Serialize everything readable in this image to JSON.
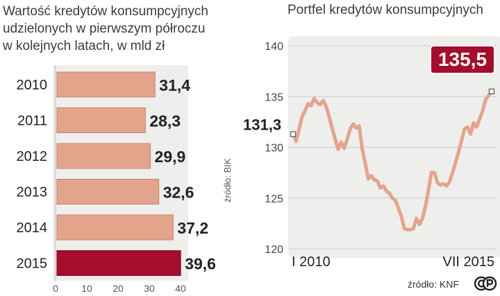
{
  "chart_data": [
    {
      "type": "bar",
      "orientation": "horizontal",
      "title_lines": [
        "Wartość kredytów konsumpcyjnych",
        "udzielonych w pierwszym półroczu",
        "w kolejnych latach, w mld zł"
      ],
      "categories": [
        "2010",
        "2011",
        "2012",
        "2013",
        "2014",
        "2015"
      ],
      "values": [
        31.4,
        28.3,
        29.9,
        32.6,
        37.2,
        39.6
      ],
      "value_labels": [
        "31,4",
        "28,3",
        "29,9",
        "32,6",
        "37,2",
        "39,6"
      ],
      "xlim": [
        0,
        40
      ],
      "xticks": [
        "0",
        "10",
        "20",
        "30",
        "40"
      ],
      "source": "źródło: BIK",
      "colors": {
        "bar": "#e3a48c",
        "highlight": "#a50d2c",
        "panel": "#eeeeec"
      }
    },
    {
      "type": "line",
      "title": "Portfel kredytów konsumpcyjnych",
      "ylim": [
        120,
        140
      ],
      "yticks": [
        "120",
        "125",
        "130",
        "135",
        "140"
      ],
      "xlabels": [
        "I 2010",
        "VII 2015"
      ],
      "x": [
        "2010-01",
        "2010-02",
        "2010-03",
        "2010-04",
        "2010-05",
        "2010-06",
        "2010-07",
        "2010-08",
        "2010-09",
        "2010-10",
        "2010-11",
        "2010-12",
        "2011-01",
        "2011-02",
        "2011-03",
        "2011-04",
        "2011-05",
        "2011-06",
        "2011-07",
        "2011-08",
        "2011-09",
        "2011-10",
        "2011-11",
        "2011-12",
        "2012-01",
        "2012-02",
        "2012-03",
        "2012-04",
        "2012-05",
        "2012-06",
        "2012-07",
        "2012-08",
        "2012-09",
        "2012-10",
        "2012-11",
        "2012-12",
        "2013-01",
        "2013-02",
        "2013-03",
        "2013-04",
        "2013-05",
        "2013-06",
        "2013-07",
        "2013-08",
        "2013-09",
        "2013-10",
        "2013-11",
        "2013-12",
        "2014-01",
        "2014-02",
        "2014-03",
        "2014-04",
        "2014-05",
        "2014-06",
        "2014-07",
        "2014-08",
        "2014-09",
        "2014-10",
        "2014-11",
        "2014-12",
        "2015-01",
        "2015-02",
        "2015-03",
        "2015-04",
        "2015-05",
        "2015-06",
        "2015-07"
      ],
      "values": [
        131.3,
        130.6,
        131.8,
        133.0,
        133.6,
        134.3,
        134.1,
        134.8,
        134.4,
        134.2,
        134.6,
        134.0,
        133.0,
        131.9,
        130.8,
        129.8,
        130.5,
        129.9,
        130.8,
        131.8,
        132.3,
        131.9,
        132.1,
        129.8,
        128.4,
        126.9,
        127.2,
        126.8,
        126.7,
        126.0,
        126.2,
        125.7,
        125.5,
        125.0,
        124.8,
        124.0,
        123.2,
        122.0,
        121.9,
        121.9,
        122.0,
        123.0,
        122.4,
        123.0,
        124.2,
        125.8,
        127.5,
        127.5,
        126.5,
        126.3,
        126.4,
        126.2,
        126.6,
        127.5,
        128.5,
        129.5,
        130.7,
        131.8,
        132.0,
        131.3,
        132.4,
        132.0,
        132.8,
        133.6,
        134.7,
        135.1,
        135.5
      ],
      "start_label": "131,3",
      "end_label": "135,5",
      "source": "źródło: KNF",
      "colors": {
        "line": "#e3a48c",
        "highlight": "#a50d2c",
        "panel": "#eeeeec",
        "grid": "#cccccc"
      }
    }
  ]
}
